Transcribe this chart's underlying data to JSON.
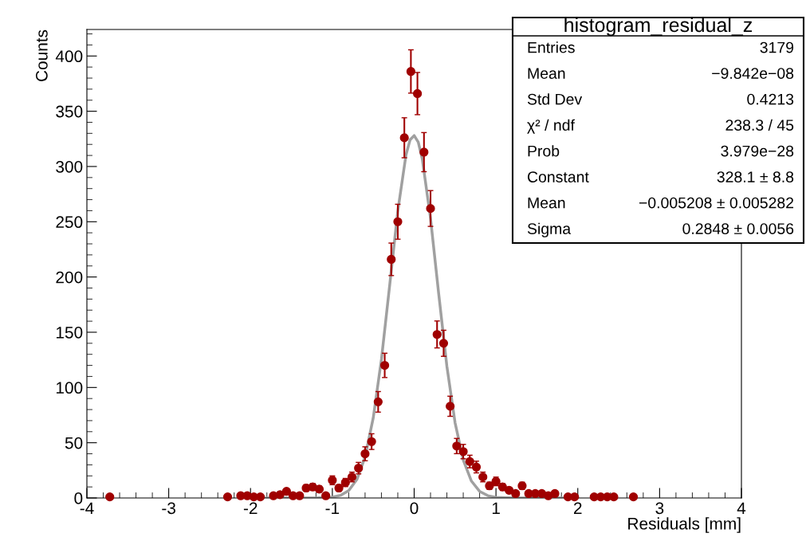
{
  "chart_data": {
    "type": "scatter",
    "xlabel": "Residuals [mm]",
    "ylabel": "Counts",
    "series": [
      {
        "color": "#a00000",
        "marker": "circle",
        "x": [
          -3.72,
          -2.28,
          -2.12,
          -2.04,
          -1.96,
          -1.88,
          -1.72,
          -1.64,
          -1.56,
          -1.48,
          -1.4,
          -1.32,
          -1.24,
          -1.16,
          -1.08,
          -1,
          -0.92,
          -0.84,
          -0.76,
          -0.68,
          -0.6,
          -0.52,
          -0.44,
          -0.36,
          -0.28,
          -0.2,
          -0.12,
          -0.04,
          0.04,
          0.12,
          0.2,
          0.28,
          0.36,
          0.44,
          0.52,
          0.6,
          0.68,
          0.76,
          0.84,
          0.92,
          1,
          1.08,
          1.16,
          1.24,
          1.32,
          1.4,
          1.48,
          1.56,
          1.64,
          1.72,
          1.88,
          1.96,
          2.2,
          2.28,
          2.36,
          2.44,
          2.68
        ],
        "values": [
          1,
          1,
          2,
          2,
          1,
          1,
          2,
          3,
          6,
          2,
          2,
          9,
          10,
          8,
          2,
          16,
          9,
          14,
          19,
          27,
          40,
          51,
          87,
          120,
          216,
          250,
          326,
          386,
          366,
          313,
          262,
          148,
          140,
          83,
          47,
          42,
          33,
          28,
          19,
          11,
          15,
          10,
          7,
          4,
          11,
          4,
          4,
          4,
          2,
          4,
          1,
          1,
          1,
          1,
          1,
          1,
          1
        ],
        "errors": [
          null,
          null,
          null,
          null,
          null,
          null,
          null,
          null,
          2.4,
          null,
          null,
          3,
          3.2,
          2.8,
          null,
          4,
          3,
          3.7,
          4.4,
          5.2,
          6.3,
          7.1,
          9.3,
          11,
          14.7,
          15.8,
          18.1,
          19.6,
          19.1,
          17.7,
          16.2,
          12.2,
          11.8,
          9.1,
          6.9,
          6.5,
          5.7,
          5.3,
          4.4,
          3.3,
          3.9,
          3.2,
          2.6,
          null,
          3.3,
          null,
          null,
          null,
          null,
          null,
          null,
          null,
          null,
          null,
          null,
          null,
          null
        ]
      },
      {
        "type": "line",
        "color": "#a0a0a0",
        "marker": "none",
        "x": [
          -2,
          -1.5,
          -1.2,
          -1,
          -0.9,
          -0.8,
          -0.7,
          -0.6,
          -0.5,
          -0.4,
          -0.3,
          -0.2,
          -0.1,
          -0.05,
          0,
          0.05,
          0.1,
          0.2,
          0.3,
          0.4,
          0.5,
          0.6,
          0.7,
          0.8,
          0.9,
          1,
          1.2,
          1.5,
          2
        ],
        "values": [
          0,
          0,
          0,
          0.7,
          2.4,
          6.7,
          16.7,
          37,
          72.5,
          125.5,
          192,
          259.7,
          310.4,
          324.1,
          328,
          322,
          306.5,
          253.1,
          184.8,
          119.2,
          68.1,
          34.3,
          15.3,
          6,
          2.1,
          0.6,
          0,
          0,
          0
        ]
      }
    ],
    "xlim": [
      -4,
      4
    ],
    "xticks": [
      -4,
      -3,
      -2,
      -1,
      0,
      1,
      2,
      3,
      4
    ],
    "ylim": [
      0,
      424
    ],
    "yticks": [
      0,
      50,
      100,
      150,
      200,
      250,
      300,
      350,
      400
    ],
    "annotations": [
      "histogram_residual_z",
      "Entries",
      "3179",
      "Mean",
      "−9.842e−08",
      "Std Dev",
      "0.4213",
      "χ² / ndf",
      "238.3 / 45",
      "Prob",
      "3.979e−28",
      "Constant",
      "328.1 ± 8.8",
      "Mean",
      "−0.005208 ± 0.005282",
      "Sigma",
      "0.2848 ± 0.0056"
    ]
  }
}
